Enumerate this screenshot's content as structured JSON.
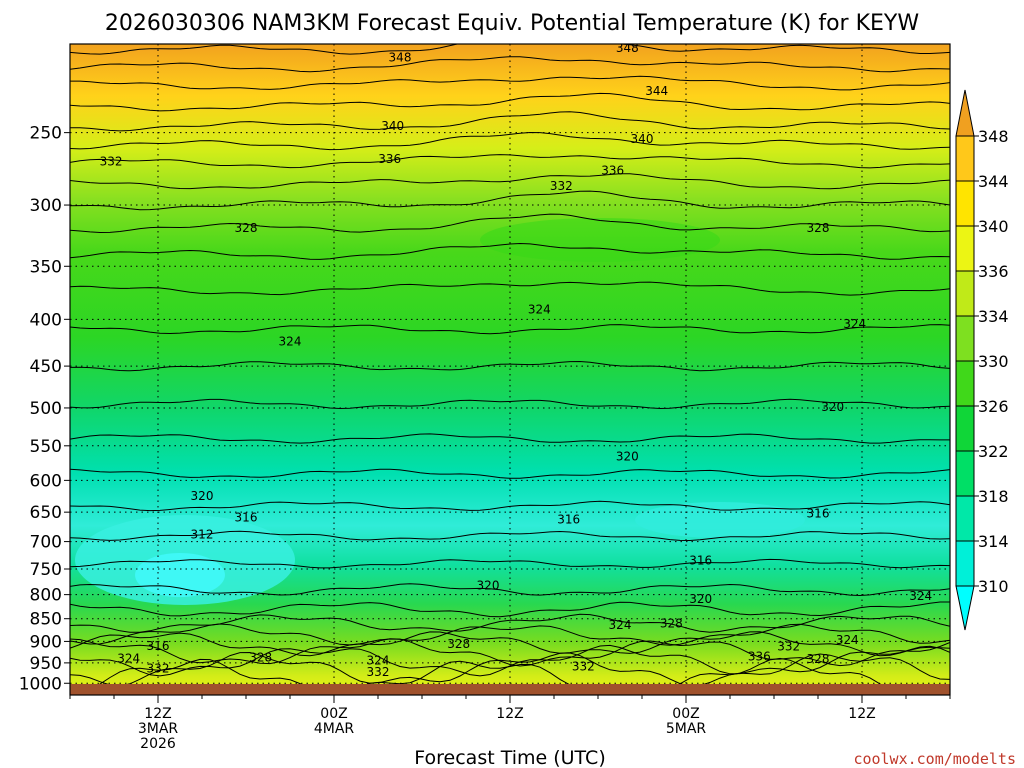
{
  "chart_data": {
    "type": "heatmap",
    "title": "2026030306 NAM3KM Forecast Equiv. Potential Temperature (K) for KEYW",
    "xlabel": "Forecast Time (UTC)",
    "ylabel": "",
    "y_scale": "log-pressure",
    "y_ticks": [
      250,
      300,
      350,
      400,
      450,
      500,
      550,
      600,
      650,
      700,
      750,
      800,
      850,
      900,
      950,
      1000
    ],
    "ylim": [
      200,
      1030
    ],
    "x_ticks": [
      {
        "label": "12Z",
        "sub1": "3MAR",
        "sub2": "2026",
        "hour": 6
      },
      {
        "label": "00Z",
        "sub1": "4MAR",
        "sub2": "",
        "hour": 18
      },
      {
        "label": "12Z",
        "sub1": "",
        "sub2": "",
        "hour": 30
      },
      {
        "label": "00Z",
        "sub1": "5MAR",
        "sub2": "",
        "hour": 42
      },
      {
        "label": "12Z",
        "sub1": "",
        "sub2": "",
        "hour": 54
      }
    ],
    "xlim": [
      0,
      60
    ],
    "colorbar": {
      "levels": [
        310,
        314,
        318,
        322,
        326,
        330,
        334,
        336,
        340,
        344,
        348
      ],
      "colors": [
        "#00ffff",
        "#00f0d8",
        "#00e8a8",
        "#00df66",
        "#10d638",
        "#40d81a",
        "#7ee020",
        "#c0ea18",
        "#ecf514",
        "#ffe400",
        "#ffc81a",
        "#f0a020"
      ]
    },
    "contour_labels": [
      {
        "text": "348",
        "hour": 22.5,
        "p": 207
      },
      {
        "text": "348",
        "hour": 38,
        "p": 202
      },
      {
        "text": "344",
        "hour": 40,
        "p": 225
      },
      {
        "text": "340",
        "hour": 22,
        "p": 246
      },
      {
        "text": "340",
        "hour": 39,
        "p": 254
      },
      {
        "text": "336",
        "hour": 21.8,
        "p": 267
      },
      {
        "text": "336",
        "hour": 37,
        "p": 275
      },
      {
        "text": "332",
        "hour": 2.8,
        "p": 269
      },
      {
        "text": "332",
        "hour": 33.5,
        "p": 286
      },
      {
        "text": "328",
        "hour": 12,
        "p": 318
      },
      {
        "text": "328",
        "hour": 51,
        "p": 318
      },
      {
        "text": "324",
        "hour": 32,
        "p": 390
      },
      {
        "text": "324",
        "hour": 15,
        "p": 423
      },
      {
        "text": "324",
        "hour": 53.5,
        "p": 405
      },
      {
        "text": "320",
        "hour": 52,
        "p": 499
      },
      {
        "text": "320",
        "hour": 38,
        "p": 565
      },
      {
        "text": "320",
        "hour": 9,
        "p": 624
      },
      {
        "text": "316",
        "hour": 12,
        "p": 659
      },
      {
        "text": "316",
        "hour": 34,
        "p": 662
      },
      {
        "text": "316",
        "hour": 51,
        "p": 652
      },
      {
        "text": "316",
        "hour": 43,
        "p": 734
      },
      {
        "text": "312",
        "hour": 9,
        "p": 688
      },
      {
        "text": "320",
        "hour": 28.5,
        "p": 782
      },
      {
        "text": "320",
        "hour": 43,
        "p": 809
      },
      {
        "text": "324",
        "hour": 58,
        "p": 803
      },
      {
        "text": "324",
        "hour": 37.5,
        "p": 864
      },
      {
        "text": "328",
        "hour": 41,
        "p": 860
      },
      {
        "text": "328",
        "hour": 26.5,
        "p": 906
      },
      {
        "text": "316",
        "hour": 6,
        "p": 911
      },
      {
        "text": "324",
        "hour": 4,
        "p": 940
      },
      {
        "text": "332",
        "hour": 6,
        "p": 963
      },
      {
        "text": "328",
        "hour": 13,
        "p": 937
      },
      {
        "text": "324",
        "hour": 21,
        "p": 944
      },
      {
        "text": "332",
        "hour": 21,
        "p": 972
      },
      {
        "text": "332",
        "hour": 35,
        "p": 959
      },
      {
        "text": "332",
        "hour": 49,
        "p": 912
      },
      {
        "text": "336",
        "hour": 47,
        "p": 935
      },
      {
        "text": "328",
        "hour": 51,
        "p": 941
      },
      {
        "text": "324",
        "hour": 53,
        "p": 897
      }
    ]
  },
  "credit": "coolwx.com/modelts",
  "colors": {
    "ground": "#a0522d",
    "credit": "#c0392b"
  }
}
